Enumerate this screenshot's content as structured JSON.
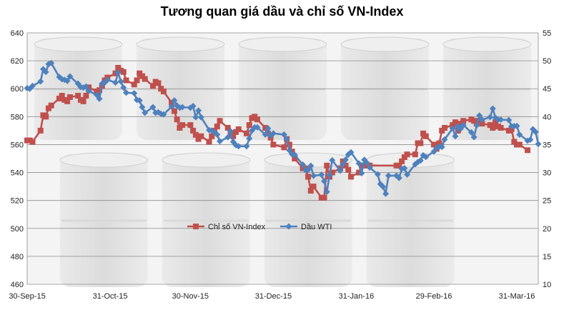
{
  "chart_data": {
    "type": "line",
    "title": "Tương quan giá dầu và chỉ số VN-Index",
    "x_ticks": [
      "30-Sep-15",
      "31-Oct-15",
      "30-Nov-15",
      "31-Dec-15",
      "31-Jan-16",
      "29-Feb-16",
      "31-Mar-16"
    ],
    "x_range": [
      "2015-09-30",
      "2016-04-08"
    ],
    "y_left": {
      "ticks": [
        460,
        480,
        500,
        520,
        540,
        560,
        580,
        600,
        620,
        640
      ],
      "range": [
        460,
        640
      ]
    },
    "y_right": {
      "ticks": [
        10,
        15,
        20,
        25,
        30,
        35,
        40,
        45,
        50,
        55
      ],
      "range": [
        10,
        55
      ]
    },
    "legend_position": "center",
    "grid": true,
    "series": [
      {
        "name": "Chỉ số VN-Index",
        "axis": "left",
        "color": "#C0504D",
        "marker": "square",
        "points": [
          [
            "2015-09-30",
            563
          ],
          [
            "2015-10-01",
            563
          ],
          [
            "2015-10-02",
            562
          ],
          [
            "2015-10-05",
            570
          ],
          [
            "2015-10-06",
            581
          ],
          [
            "2015-10-07",
            580
          ],
          [
            "2015-10-08",
            586
          ],
          [
            "2015-10-09",
            588
          ],
          [
            "2015-10-12",
            593
          ],
          [
            "2015-10-13",
            595
          ],
          [
            "2015-10-14",
            592
          ],
          [
            "2015-10-15",
            591
          ],
          [
            "2015-10-16",
            594
          ],
          [
            "2015-10-19",
            595
          ],
          [
            "2015-10-20",
            592
          ],
          [
            "2015-10-21",
            591
          ],
          [
            "2015-10-22",
            595
          ],
          [
            "2015-10-23",
            601
          ],
          [
            "2015-10-26",
            598
          ],
          [
            "2015-10-27",
            599
          ],
          [
            "2015-10-28",
            602
          ],
          [
            "2015-10-29",
            606
          ],
          [
            "2015-10-30",
            608
          ],
          [
            "2015-11-02",
            611
          ],
          [
            "2015-11-03",
            615
          ],
          [
            "2015-11-04",
            613
          ],
          [
            "2015-11-05",
            612
          ],
          [
            "2015-11-06",
            606
          ],
          [
            "2015-11-09",
            603
          ],
          [
            "2015-11-10",
            606
          ],
          [
            "2015-11-11",
            611
          ],
          [
            "2015-11-12",
            609
          ],
          [
            "2015-11-13",
            607
          ],
          [
            "2015-11-16",
            602
          ],
          [
            "2015-11-17",
            605
          ],
          [
            "2015-11-18",
            604
          ],
          [
            "2015-11-19",
            600
          ],
          [
            "2015-11-20",
            598
          ],
          [
            "2015-11-23",
            590
          ],
          [
            "2015-11-24",
            584
          ],
          [
            "2015-11-25",
            578
          ],
          [
            "2015-11-26",
            572
          ],
          [
            "2015-11-27",
            574
          ],
          [
            "2015-11-30",
            574
          ],
          [
            "2015-12-01",
            570
          ],
          [
            "2015-12-02",
            567
          ],
          [
            "2015-12-03",
            564
          ],
          [
            "2015-12-04",
            566
          ],
          [
            "2015-12-07",
            562
          ],
          [
            "2015-12-08",
            566
          ],
          [
            "2015-12-09",
            570
          ],
          [
            "2015-12-10",
            573
          ],
          [
            "2015-12-11",
            577
          ],
          [
            "2015-12-14",
            572
          ],
          [
            "2015-12-15",
            568
          ],
          [
            "2015-12-16",
            566
          ],
          [
            "2015-12-17",
            569
          ],
          [
            "2015-12-18",
            571
          ],
          [
            "2015-12-21",
            568
          ],
          [
            "2015-12-22",
            574
          ],
          [
            "2015-12-23",
            579
          ],
          [
            "2015-12-24",
            580
          ],
          [
            "2015-12-25",
            578
          ],
          [
            "2015-12-28",
            572
          ],
          [
            "2015-12-29",
            568
          ],
          [
            "2015-12-30",
            565
          ],
          [
            "2015-12-31",
            560
          ],
          [
            "2016-01-04",
            558
          ],
          [
            "2016-01-05",
            564
          ],
          [
            "2016-01-06",
            560
          ],
          [
            "2016-01-07",
            555
          ],
          [
            "2016-01-08",
            550
          ],
          [
            "2016-01-11",
            543
          ],
          [
            "2016-01-12",
            543
          ],
          [
            "2016-01-13",
            537
          ],
          [
            "2016-01-14",
            527
          ],
          [
            "2016-01-15",
            530
          ],
          [
            "2016-01-18",
            522
          ],
          [
            "2016-01-19",
            522
          ],
          [
            "2016-01-20",
            545
          ],
          [
            "2016-01-21",
            537
          ],
          [
            "2016-01-22",
            540
          ],
          [
            "2016-01-25",
            543
          ],
          [
            "2016-01-26",
            548
          ],
          [
            "2016-01-27",
            545
          ],
          [
            "2016-01-28",
            542
          ],
          [
            "2016-01-29",
            537
          ],
          [
            "2016-02-01",
            540
          ],
          [
            "2016-02-02",
            545
          ],
          [
            "2016-02-03",
            545
          ],
          [
            "2016-02-04",
            545
          ],
          [
            "2016-02-05",
            545
          ],
          [
            "2016-02-15",
            545
          ],
          [
            "2016-02-16",
            545
          ],
          [
            "2016-02-17",
            548
          ],
          [
            "2016-02-18",
            551
          ],
          [
            "2016-02-19",
            553
          ],
          [
            "2016-02-22",
            553
          ],
          [
            "2016-02-23",
            561
          ],
          [
            "2016-02-24",
            561
          ],
          [
            "2016-02-25",
            568
          ],
          [
            "2016-02-26",
            566
          ],
          [
            "2016-02-29",
            560
          ],
          [
            "2016-03-01",
            557
          ],
          [
            "2016-03-02",
            561
          ],
          [
            "2016-03-03",
            570
          ],
          [
            "2016-03-04",
            572
          ],
          [
            "2016-03-07",
            574
          ],
          [
            "2016-03-08",
            576
          ],
          [
            "2016-03-09",
            570
          ],
          [
            "2016-03-10",
            575
          ],
          [
            "2016-03-11",
            577
          ],
          [
            "2016-03-14",
            578
          ],
          [
            "2016-03-15",
            577
          ],
          [
            "2016-03-16",
            575
          ],
          [
            "2016-03-17",
            577
          ],
          [
            "2016-03-18",
            575
          ],
          [
            "2016-03-21",
            574
          ],
          [
            "2016-03-22",
            572
          ],
          [
            "2016-03-23",
            576
          ],
          [
            "2016-03-24",
            573
          ],
          [
            "2016-03-25",
            572
          ],
          [
            "2016-03-28",
            570
          ],
          [
            "2016-03-29",
            571
          ],
          [
            "2016-03-30",
            562
          ],
          [
            "2016-03-31",
            560
          ],
          [
            "2016-04-01",
            560
          ],
          [
            "2016-04-04",
            556
          ]
        ]
      },
      {
        "name": "Dầu WTI",
        "axis": "right",
        "color": "#4F81BD",
        "marker": "diamond",
        "points": [
          [
            "2015-09-30",
            45.1
          ],
          [
            "2015-10-01",
            45.0
          ],
          [
            "2015-10-02",
            45.5
          ],
          [
            "2015-10-05",
            46.3
          ],
          [
            "2015-10-06",
            48.5
          ],
          [
            "2015-10-07",
            48.0
          ],
          [
            "2015-10-08",
            49.4
          ],
          [
            "2015-10-09",
            49.6
          ],
          [
            "2015-10-12",
            47.1
          ],
          [
            "2015-10-13",
            46.7
          ],
          [
            "2015-10-14",
            46.6
          ],
          [
            "2015-10-15",
            46.4
          ],
          [
            "2015-10-16",
            47.2
          ],
          [
            "2015-10-19",
            45.9
          ],
          [
            "2015-10-20",
            45.3
          ],
          [
            "2015-10-21",
            45.2
          ],
          [
            "2015-10-22",
            45.4
          ],
          [
            "2015-10-23",
            44.6
          ],
          [
            "2015-10-26",
            43.9
          ],
          [
            "2015-10-27",
            43.2
          ],
          [
            "2015-10-28",
            45.9
          ],
          [
            "2015-10-29",
            46.1
          ],
          [
            "2015-10-30",
            46.6
          ],
          [
            "2015-11-02",
            46.1
          ],
          [
            "2015-11-03",
            47.9
          ],
          [
            "2015-11-04",
            46.3
          ],
          [
            "2015-11-05",
            45.2
          ],
          [
            "2015-11-06",
            44.3
          ],
          [
            "2015-11-09",
            44.2
          ],
          [
            "2015-11-10",
            43.0
          ],
          [
            "2015-11-11",
            42.9
          ],
          [
            "2015-11-12",
            41.7
          ],
          [
            "2015-11-13",
            40.7
          ],
          [
            "2015-11-16",
            41.7
          ],
          [
            "2015-11-17",
            40.7
          ],
          [
            "2015-11-18",
            40.8
          ],
          [
            "2015-11-19",
            40.5
          ],
          [
            "2015-11-20",
            40.4
          ],
          [
            "2015-11-23",
            41.8
          ],
          [
            "2015-11-24",
            42.9
          ],
          [
            "2015-11-25",
            42.0
          ],
          [
            "2015-11-26",
            41.6
          ],
          [
            "2015-11-27",
            41.7
          ],
          [
            "2015-11-30",
            41.6
          ],
          [
            "2015-12-01",
            41.9
          ],
          [
            "2015-12-02",
            39.9
          ],
          [
            "2015-12-03",
            41.1
          ],
          [
            "2015-12-04",
            39.9
          ],
          [
            "2015-12-07",
            37.6
          ],
          [
            "2015-12-08",
            37.5
          ],
          [
            "2015-12-09",
            37.2
          ],
          [
            "2015-12-10",
            36.8
          ],
          [
            "2015-12-11",
            35.6
          ],
          [
            "2015-12-14",
            36.3
          ],
          [
            "2015-12-15",
            37.4
          ],
          [
            "2015-12-16",
            35.5
          ],
          [
            "2015-12-17",
            34.9
          ],
          [
            "2015-12-18",
            34.7
          ],
          [
            "2015-12-21",
            34.7
          ],
          [
            "2015-12-22",
            36.1
          ],
          [
            "2015-12-23",
            37.5
          ],
          [
            "2015-12-24",
            38.1
          ],
          [
            "2015-12-25",
            38.1
          ],
          [
            "2015-12-28",
            36.8
          ],
          [
            "2015-12-29",
            37.9
          ],
          [
            "2015-12-30",
            36.6
          ],
          [
            "2015-12-31",
            37.0
          ],
          [
            "2016-01-04",
            36.8
          ],
          [
            "2016-01-05",
            35.97
          ],
          [
            "2016-01-06",
            33.97
          ],
          [
            "2016-01-07",
            33.27
          ],
          [
            "2016-01-08",
            33.16
          ],
          [
            "2016-01-11",
            31.41
          ],
          [
            "2016-01-12",
            30.44
          ],
          [
            "2016-01-13",
            30.48
          ],
          [
            "2016-01-14",
            31.2
          ],
          [
            "2016-01-15",
            29.42
          ],
          [
            "2016-01-18",
            29.6
          ],
          [
            "2016-01-19",
            28.46
          ],
          [
            "2016-01-20",
            26.55
          ],
          [
            "2016-01-21",
            29.53
          ],
          [
            "2016-01-22",
            32.19
          ],
          [
            "2016-01-25",
            30.34
          ],
          [
            "2016-01-26",
            31.45
          ],
          [
            "2016-01-27",
            32.3
          ],
          [
            "2016-01-28",
            33.22
          ],
          [
            "2016-01-29",
            33.62
          ],
          [
            "2016-02-01",
            31.62
          ],
          [
            "2016-02-02",
            29.88
          ],
          [
            "2016-02-03",
            32.28
          ],
          [
            "2016-02-04",
            31.72
          ],
          [
            "2016-02-05",
            30.89
          ],
          [
            "2016-02-08",
            29.69
          ],
          [
            "2016-02-09",
            27.94
          ],
          [
            "2016-02-10",
            27.45
          ],
          [
            "2016-02-11",
            26.21
          ],
          [
            "2016-02-12",
            29.44
          ],
          [
            "2016-02-15",
            29.44
          ],
          [
            "2016-02-16",
            29.04
          ],
          [
            "2016-02-17",
            30.66
          ],
          [
            "2016-02-18",
            30.77
          ],
          [
            "2016-02-19",
            29.64
          ],
          [
            "2016-02-22",
            31.48
          ],
          [
            "2016-02-23",
            31.87
          ],
          [
            "2016-02-24",
            32.15
          ],
          [
            "2016-02-25",
            33.07
          ],
          [
            "2016-02-26",
            32.78
          ],
          [
            "2016-02-29",
            33.75
          ],
          [
            "2016-03-01",
            34.4
          ],
          [
            "2016-03-02",
            34.66
          ],
          [
            "2016-03-03",
            34.57
          ],
          [
            "2016-03-04",
            35.92
          ],
          [
            "2016-03-07",
            37.9
          ],
          [
            "2016-03-08",
            36.5
          ],
          [
            "2016-03-09",
            38.29
          ],
          [
            "2016-03-10",
            37.84
          ],
          [
            "2016-03-11",
            38.5
          ],
          [
            "2016-03-14",
            37.18
          ],
          [
            "2016-03-15",
            36.34
          ],
          [
            "2016-03-16",
            38.46
          ],
          [
            "2016-03-17",
            40.2
          ],
          [
            "2016-03-18",
            39.44
          ],
          [
            "2016-03-21",
            39.91
          ],
          [
            "2016-03-22",
            41.45
          ],
          [
            "2016-03-23",
            39.79
          ],
          [
            "2016-03-24",
            39.46
          ],
          [
            "2016-03-25",
            39.46
          ],
          [
            "2016-03-28",
            39.39
          ],
          [
            "2016-03-29",
            38.28
          ],
          [
            "2016-03-30",
            38.32
          ],
          [
            "2016-03-31",
            38.34
          ],
          [
            "2016-04-01",
            36.79
          ],
          [
            "2016-04-04",
            35.7
          ],
          [
            "2016-04-05",
            35.89
          ],
          [
            "2016-04-06",
            37.75
          ],
          [
            "2016-04-07",
            37.26
          ],
          [
            "2016-04-08",
            35.1
          ]
        ]
      }
    ]
  }
}
